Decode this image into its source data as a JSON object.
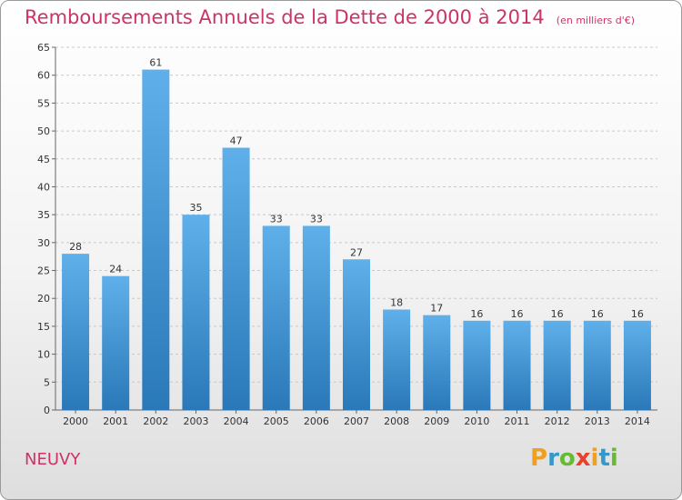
{
  "chart_data": {
    "type": "bar",
    "title": "Remboursements Annuels de la Dette de 2000 à 2014",
    "subtitle": "(en milliers d'€)",
    "categories": [
      "2000",
      "2001",
      "2002",
      "2003",
      "2004",
      "2005",
      "2006",
      "2007",
      "2008",
      "2009",
      "2010",
      "2011",
      "2012",
      "2013",
      "2014"
    ],
    "values": [
      28,
      24,
      61,
      35,
      47,
      33,
      33,
      27,
      18,
      17,
      16,
      16,
      16,
      16,
      16
    ],
    "ylim": [
      0,
      65
    ],
    "yticks": [
      0,
      5,
      10,
      15,
      20,
      25,
      30,
      35,
      40,
      45,
      50,
      55,
      60,
      65
    ],
    "grid": true,
    "colors": {
      "bar_top": "#5fb0ea",
      "bar_bottom": "#2a78b8",
      "title": "#cc3366"
    }
  },
  "footer": {
    "commune": "NEUVY",
    "logo": [
      "P",
      "r",
      "o",
      "x",
      "i",
      "t",
      "i"
    ],
    "logo_colors": [
      "#f0a020",
      "#3399cc",
      "#66bb33",
      "#e8402a",
      "#f0a020",
      "#3399cc",
      "#66bb33"
    ]
  }
}
